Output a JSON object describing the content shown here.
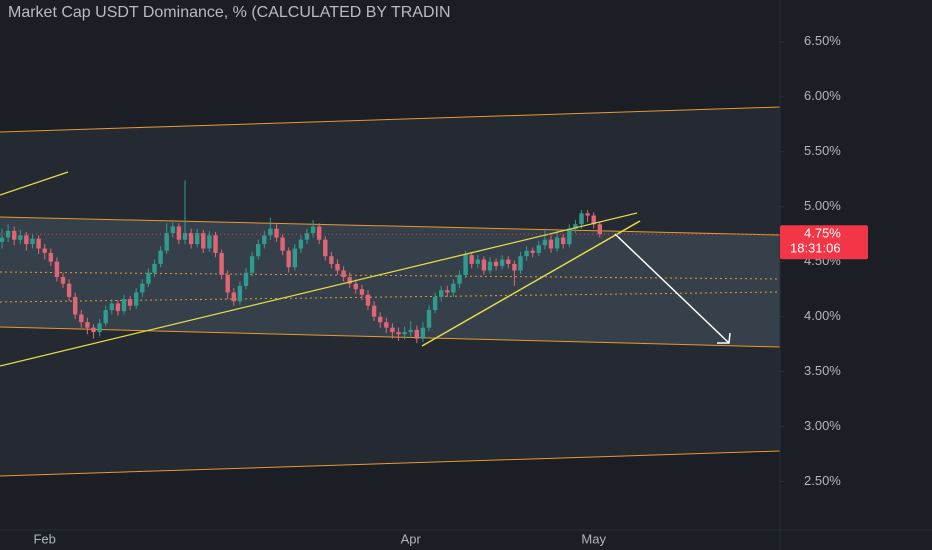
{
  "chart_data": {
    "type": "candlestick",
    "title": "Market Cap USDT Dominance, % (CALCULATED BY TRADIN",
    "up_color": "#2f9c90",
    "down_color": "#e06676",
    "categories": [
      null,
      null,
      null,
      null,
      null,
      null,
      null,
      "Feb",
      null,
      null,
      null,
      null,
      null,
      null,
      null,
      null,
      null,
      null,
      null,
      null,
      null,
      null,
      null,
      null,
      null,
      null,
      null,
      null,
      null,
      null,
      null,
      null,
      null,
      null,
      null,
      null,
      null,
      null,
      null,
      null,
      null,
      null,
      null,
      null,
      null,
      null,
      null,
      null,
      null,
      null,
      null,
      null,
      null,
      null,
      null,
      null,
      null,
      null,
      null,
      null,
      null,
      null,
      null,
      null,
      null,
      null,
      null,
      "Apr",
      null,
      null,
      null,
      null,
      null,
      null,
      null,
      null,
      null,
      null,
      null,
      null,
      null,
      null,
      null,
      null,
      null,
      null,
      null,
      null,
      null,
      null,
      null,
      null,
      null,
      null,
      null,
      null,
      null,
      "May",
      null
    ],
    "open": [
      4.68,
      4.72,
      4.78,
      4.7,
      4.74,
      4.66,
      4.71,
      4.62,
      4.58,
      4.5,
      4.36,
      4.3,
      4.18,
      4.02,
      3.95,
      3.9,
      3.86,
      3.94,
      4.06,
      4.12,
      4.05,
      4.16,
      4.1,
      4.22,
      4.3,
      4.4,
      4.48,
      4.6,
      4.76,
      4.82,
      4.7,
      4.76,
      4.66,
      4.76,
      4.62,
      4.74,
      4.58,
      4.38,
      4.22,
      4.14,
      4.28,
      4.4,
      4.55,
      4.66,
      4.74,
      4.8,
      4.72,
      4.6,
      4.45,
      4.62,
      4.7,
      4.76,
      4.82,
      4.7,
      4.55,
      4.48,
      4.42,
      4.36,
      4.3,
      4.25,
      4.2,
      4.1,
      4.0,
      3.95,
      3.9,
      3.86,
      3.84,
      3.86,
      3.88,
      3.8,
      3.9,
      4.06,
      4.18,
      4.24,
      4.22,
      4.3,
      4.38,
      4.56,
      4.48,
      4.52,
      4.42,
      4.5,
      4.46,
      4.52,
      4.48,
      4.42,
      4.55,
      4.6,
      4.58,
      4.65,
      4.7,
      4.62,
      4.72,
      4.66,
      4.8,
      4.84,
      4.94,
      4.92,
      4.84
    ],
    "high": [
      4.8,
      4.84,
      4.82,
      4.79,
      4.77,
      4.75,
      4.74,
      4.66,
      4.62,
      4.54,
      4.4,
      4.34,
      4.22,
      4.06,
      3.99,
      3.93,
      3.98,
      4.1,
      4.16,
      4.15,
      4.2,
      4.19,
      4.26,
      4.34,
      4.44,
      4.52,
      4.64,
      4.85,
      4.86,
      4.85,
      5.24,
      4.8,
      4.8,
      4.79,
      4.78,
      4.77,
      4.61,
      4.42,
      4.26,
      4.32,
      4.44,
      4.59,
      4.7,
      4.78,
      4.9,
      4.84,
      4.75,
      4.63,
      4.66,
      4.74,
      4.8,
      4.88,
      4.85,
      4.73,
      4.59,
      4.52,
      4.46,
      4.4,
      4.34,
      4.29,
      4.24,
      4.14,
      4.04,
      3.99,
      3.94,
      3.9,
      3.91,
      3.96,
      3.92,
      3.95,
      4.1,
      4.22,
      4.28,
      4.28,
      4.34,
      4.42,
      4.6,
      4.59,
      4.56,
      4.55,
      4.54,
      4.53,
      4.56,
      4.55,
      4.51,
      4.59,
      4.64,
      4.63,
      4.69,
      4.8,
      4.74,
      4.78,
      4.75,
      4.84,
      4.88,
      4.97,
      4.97,
      4.95,
      4.86
    ],
    "low": [
      4.62,
      4.68,
      4.65,
      4.66,
      4.6,
      4.62,
      4.57,
      4.52,
      4.46,
      4.32,
      4.26,
      4.14,
      3.98,
      3.9,
      3.84,
      3.8,
      3.82,
      3.91,
      4.02,
      4.01,
      4.02,
      4.06,
      4.07,
      4.18,
      4.27,
      4.36,
      4.45,
      4.57,
      4.72,
      4.66,
      4.66,
      4.62,
      4.63,
      4.58,
      4.59,
      4.54,
      4.34,
      4.16,
      4.1,
      4.11,
      4.25,
      4.37,
      4.52,
      4.62,
      4.7,
      4.68,
      4.56,
      4.4,
      4.42,
      4.58,
      4.66,
      4.72,
      4.66,
      4.51,
      4.44,
      4.38,
      4.32,
      4.26,
      4.21,
      4.15,
      4.06,
      3.96,
      3.9,
      3.85,
      3.8,
      3.78,
      3.79,
      3.81,
      3.76,
      3.77,
      3.87,
      4.03,
      4.14,
      4.18,
      4.18,
      4.26,
      4.35,
      4.44,
      4.44,
      4.38,
      4.39,
      4.42,
      4.43,
      4.44,
      4.28,
      4.39,
      4.51,
      4.54,
      4.55,
      4.61,
      4.58,
      4.59,
      4.62,
      4.63,
      4.76,
      4.8,
      4.86,
      4.8,
      4.72
    ],
    "close": [
      4.72,
      4.78,
      4.7,
      4.74,
      4.66,
      4.71,
      4.62,
      4.58,
      4.5,
      4.36,
      4.3,
      4.18,
      4.02,
      3.95,
      3.9,
      3.86,
      3.94,
      4.06,
      4.12,
      4.05,
      4.16,
      4.1,
      4.22,
      4.3,
      4.4,
      4.48,
      4.6,
      4.76,
      4.82,
      4.7,
      4.76,
      4.66,
      4.76,
      4.62,
      4.74,
      4.58,
      4.38,
      4.22,
      4.14,
      4.28,
      4.4,
      4.55,
      4.66,
      4.74,
      4.8,
      4.72,
      4.6,
      4.45,
      4.62,
      4.7,
      4.76,
      4.82,
      4.7,
      4.55,
      4.48,
      4.42,
      4.36,
      4.3,
      4.25,
      4.2,
      4.1,
      4.0,
      3.95,
      3.9,
      3.86,
      3.84,
      3.86,
      3.88,
      3.8,
      3.9,
      4.06,
      4.18,
      4.24,
      4.22,
      4.3,
      4.38,
      4.56,
      4.48,
      4.52,
      4.42,
      4.5,
      4.46,
      4.52,
      4.48,
      4.42,
      4.55,
      4.6,
      4.58,
      4.65,
      4.7,
      4.62,
      4.72,
      4.66,
      4.8,
      4.84,
      4.94,
      4.92,
      4.84,
      4.75
    ],
    "ylim": [
      2.06,
      6.88
    ],
    "yticks": [
      {
        "value": 2.5,
        "label": "2.50%"
      },
      {
        "value": 3.0,
        "label": "3.00%"
      },
      {
        "value": 3.5,
        "label": "3.50%"
      },
      {
        "value": 4.0,
        "label": "4.00%"
      },
      {
        "value": 4.5,
        "label": "4.50%"
      },
      {
        "value": 5.0,
        "label": "5.00%"
      },
      {
        "value": 5.5,
        "label": "5.50%"
      },
      {
        "value": 6.0,
        "label": "6.00%"
      },
      {
        "value": 6.5,
        "label": "6.50%"
      }
    ],
    "last_price": {
      "value": 4.75,
      "label": "4.75%",
      "color": "#f23645"
    },
    "countdown": "18:31:06"
  }
}
